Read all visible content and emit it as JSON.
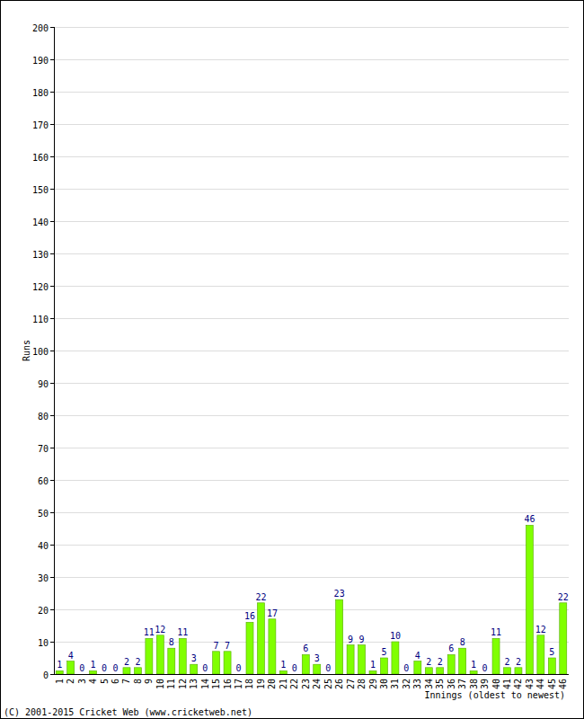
{
  "chart_data": {
    "type": "bar",
    "x_label": "Innings (oldest to newest)",
    "y_label": "Runs",
    "annotation": "(C) 2001-2015 Cricket Web (www.cricketweb.net)",
    "categories": [
      "1",
      "2",
      "3",
      "4",
      "5",
      "6",
      "7",
      "8",
      "9",
      "10",
      "11",
      "12",
      "13",
      "14",
      "15",
      "16",
      "17",
      "18",
      "19",
      "20",
      "21",
      "22",
      "23",
      "24",
      "25",
      "26",
      "27",
      "28",
      "29",
      "30",
      "31",
      "32",
      "33",
      "34",
      "35",
      "36",
      "37",
      "38",
      "39",
      "40",
      "41",
      "42",
      "43",
      "44",
      "45",
      "46"
    ],
    "values": [
      1,
      4,
      0,
      1,
      0,
      0,
      2,
      2,
      11,
      12,
      8,
      11,
      3,
      0,
      7,
      7,
      0,
      16,
      22,
      17,
      1,
      0,
      6,
      3,
      0,
      23,
      9,
      9,
      1,
      5,
      10,
      0,
      4,
      2,
      2,
      6,
      8,
      1,
      0,
      11,
      2,
      2,
      46,
      12,
      5,
      22
    ],
    "color": "#80ff00",
    "ylim": [
      0,
      200
    ],
    "yticks": [
      0,
      10,
      20,
      30,
      40,
      50,
      60,
      70,
      80,
      90,
      100,
      110,
      120,
      130,
      140,
      150,
      160,
      170,
      180,
      190,
      200
    ],
    "grid": true,
    "data_labels": true
  }
}
